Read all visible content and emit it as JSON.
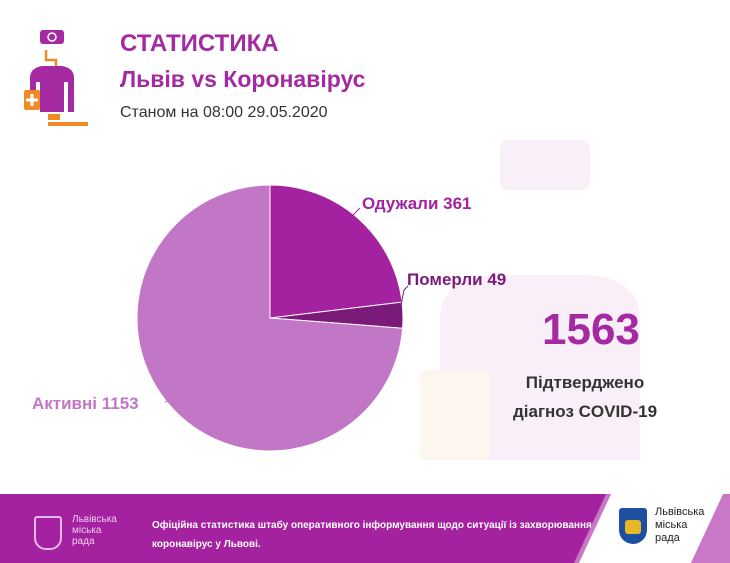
{
  "header": {
    "title": "СТАТИСТИКА",
    "subtitle": "Львів vs Коронавірус",
    "date": "Станом на 08:00 29.05.2020"
  },
  "chart_data": {
    "type": "pie",
    "slices": [
      {
        "label": "Одужали",
        "value": 361,
        "color": "#a421a0"
      },
      {
        "label": "Померли",
        "value": 49,
        "color": "#7b1a78"
      },
      {
        "label": "Активні",
        "value": 1153,
        "color": "#c276c6"
      }
    ],
    "data_labels": [
      "Одужали 361",
      "Померли 49",
      "Активні 1153"
    ]
  },
  "summary": {
    "total": "1563",
    "line1": "Підтверджено",
    "line2": "діагноз COVID-19"
  },
  "footer": {
    "city_name": [
      "Львівська",
      "міська",
      "рада"
    ],
    "text_line1": "Офіційна статистика штабу оперативного інформування щодо ситуації із захворюванням на",
    "text_line2": "коронавірус у Львові.",
    "colors": {
      "background": "#a421a0",
      "accent": "#c878c6"
    }
  }
}
